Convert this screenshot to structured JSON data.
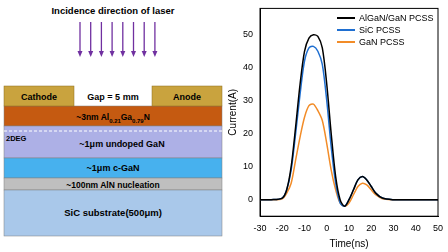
{
  "diagram": {
    "laser_label": "Incidence direction of laser",
    "electrodes": {
      "left": "Cathode",
      "right": "Anode"
    },
    "gap_label": "Gap = 5 mm",
    "twodeg_label": "2DEG",
    "layers": [
      {
        "parts": [
          {
            "text": "~3nm Al"
          },
          {
            "text": "0.21",
            "sub": true
          },
          {
            "text": "Ga"
          },
          {
            "text": "0.79",
            "sub": true
          },
          {
            "text": "N"
          }
        ]
      },
      {
        "parts": [
          {
            "text": "~1μm undoped GaN"
          }
        ]
      },
      {
        "parts": [
          {
            "text": "~1μm c-GaN"
          }
        ]
      },
      {
        "parts": [
          {
            "text": "~100nm AlN nucleation"
          }
        ]
      },
      {
        "parts": [
          {
            "text": "SiC substrate(500μm)"
          }
        ]
      }
    ]
  },
  "chart_data": {
    "type": "line",
    "x_label": "Time(ns)",
    "y_label": "Current(A)",
    "x": [
      -30,
      -25,
      -20,
      -18,
      -16,
      -14,
      -12,
      -10,
      -8,
      -6,
      -4,
      -2,
      0,
      2,
      4,
      6,
      8,
      10,
      12,
      14,
      16,
      18,
      20,
      22,
      25,
      30,
      35,
      40,
      45,
      50
    ],
    "series": [
      {
        "name": "AlGaN/GaN PCSS",
        "color": "#000000",
        "values": [
          0,
          0,
          0.5,
          3,
          10,
          22,
          35,
          45,
          49,
          50,
          49.5,
          46,
          35,
          20,
          7,
          0,
          -2,
          0,
          3,
          6,
          7,
          6,
          4,
          2,
          0.5,
          0,
          0,
          0,
          0,
          0
        ]
      },
      {
        "name": "SiC PCSS",
        "color": "#1f6fd1",
        "values": [
          0,
          0,
          0.5,
          3,
          9,
          20,
          32,
          42,
          46,
          46.5,
          45,
          41,
          30,
          16,
          5,
          -1,
          -2,
          0,
          3,
          6,
          7,
          6,
          4,
          2,
          0.5,
          0,
          0,
          0,
          0,
          0
        ]
      },
      {
        "name": "GaN PCSS",
        "color": "#f28c28",
        "values": [
          0,
          0,
          0.3,
          2,
          5,
          12,
          19,
          25,
          28.5,
          29,
          27,
          24,
          17,
          9,
          3,
          -1,
          -2,
          -1,
          1.5,
          4,
          5,
          4.5,
          3,
          1.5,
          0.3,
          0,
          0,
          0,
          0,
          0
        ]
      }
    ],
    "xlim": [
      -30,
      50
    ],
    "xticks": [
      -30,
      -20,
      -10,
      0,
      10,
      20,
      30,
      40,
      50
    ],
    "ylim": [
      -5,
      58
    ],
    "yticks": [
      0,
      10,
      20,
      30,
      40,
      50
    ],
    "grid": false,
    "legend": "upper right"
  }
}
